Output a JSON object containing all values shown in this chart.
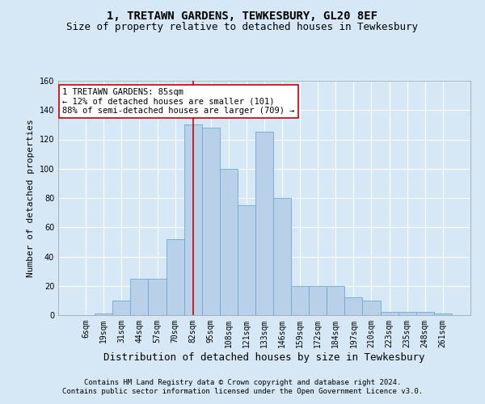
{
  "title1": "1, TRETAWN GARDENS, TEWKESBURY, GL20 8EF",
  "title2": "Size of property relative to detached houses in Tewkesbury",
  "xlabel": "Distribution of detached houses by size in Tewkesbury",
  "ylabel": "Number of detached properties",
  "categories": [
    "6sqm",
    "19sqm",
    "31sqm",
    "44sqm",
    "57sqm",
    "70sqm",
    "82sqm",
    "95sqm",
    "108sqm",
    "121sqm",
    "133sqm",
    "146sqm",
    "159sqm",
    "172sqm",
    "184sqm",
    "197sqm",
    "210sqm",
    "223sqm",
    "235sqm",
    "248sqm",
    "261sqm"
  ],
  "values": [
    0,
    1,
    10,
    25,
    25,
    52,
    130,
    128,
    100,
    75,
    125,
    80,
    20,
    20,
    20,
    12,
    10,
    2,
    2,
    2,
    1
  ],
  "bar_color": "#b8d0e8",
  "bar_edge_color": "#6aaad4",
  "highlight_bar_index": 6,
  "highlight_line_color": "#cc0000",
  "ylim": [
    0,
    160
  ],
  "yticks": [
    0,
    20,
    40,
    60,
    80,
    100,
    120,
    140,
    160
  ],
  "annotation_text": "1 TRETAWN GARDENS: 85sqm\n← 12% of detached houses are smaller (101)\n88% of semi-detached houses are larger (709) →",
  "annotation_box_facecolor": "#ffffff",
  "annotation_box_edge_color": "#cc0000",
  "footer1": "Contains HM Land Registry data © Crown copyright and database right 2024.",
  "footer2": "Contains public sector information licensed under the Open Government Licence v3.0.",
  "background_color": "#d6e8f5",
  "plot_background_color": "#d6e8f5",
  "grid_color": "#ffffff",
  "title1_fontsize": 10,
  "title2_fontsize": 9,
  "xlabel_fontsize": 9,
  "ylabel_fontsize": 8,
  "tick_fontsize": 7,
  "annotation_fontsize": 7.5,
  "footer_fontsize": 6.5
}
